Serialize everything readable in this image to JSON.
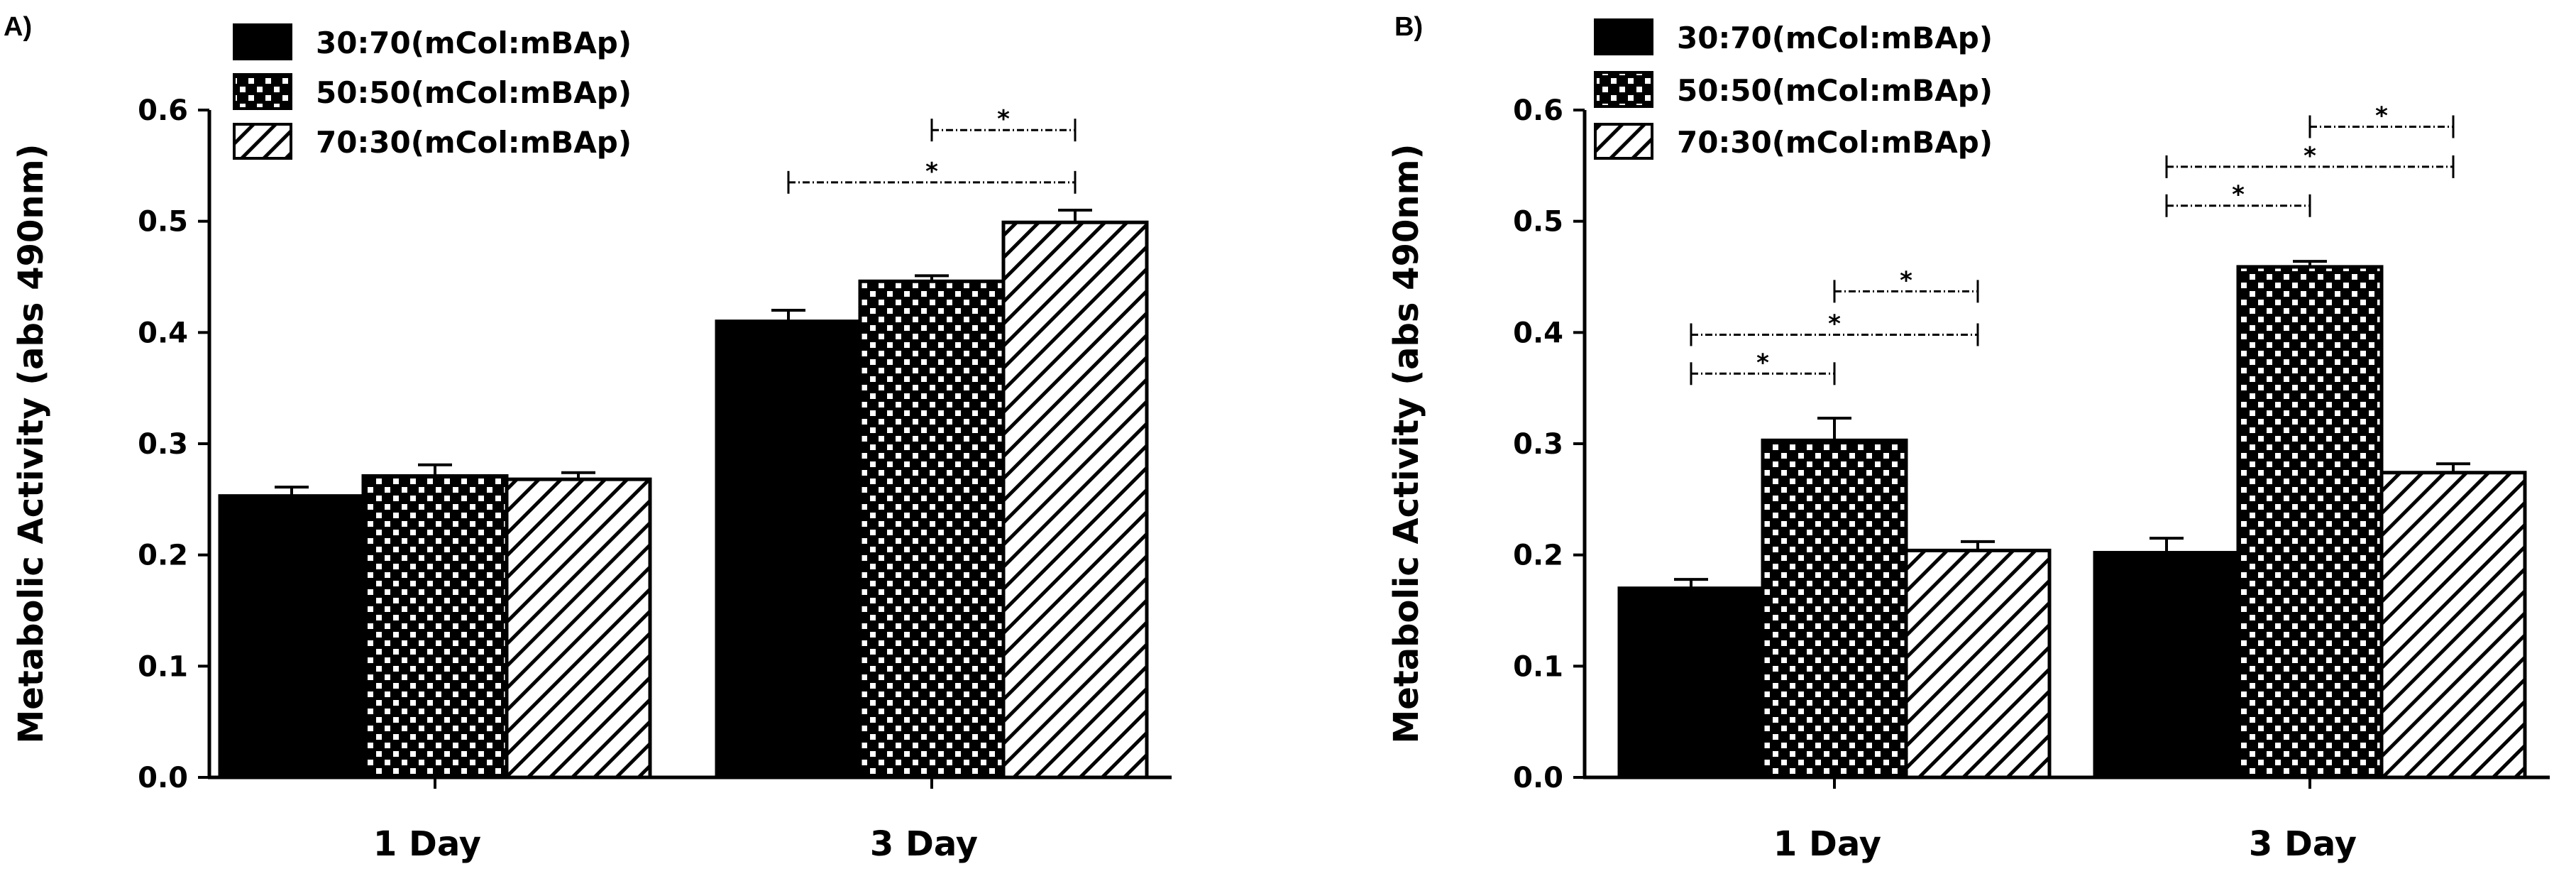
{
  "chart_data": [
    {
      "panel": "A)",
      "type": "bar",
      "ylabel": "Metabolic Activity (abs 490nm)",
      "xlabel": "",
      "ylim": [
        0,
        0.6
      ],
      "yticks": [
        "0.0",
        "0.1",
        "0.2",
        "0.3",
        "0.4",
        "0.5",
        "0.6"
      ],
      "categories": [
        "1 Day",
        "3 Day"
      ],
      "series": [
        {
          "name": "30:70(mCol:mBAp)",
          "pattern": "solid",
          "values": [
            0.253,
            0.41
          ],
          "errors": [
            0.008,
            0.01
          ]
        },
        {
          "name": "50:50(mCol:mBAp)",
          "pattern": "checker",
          "values": [
            0.271,
            0.446
          ],
          "errors": [
            0.01,
            0.005
          ]
        },
        {
          "name": "70:30(mCol:mBAp)",
          "pattern": "hatch",
          "values": [
            0.268,
            0.499
          ],
          "errors": [
            0.006,
            0.011
          ]
        }
      ],
      "significance": [
        {
          "category": 1,
          "from": 1,
          "to": 2,
          "y": 0.582,
          "label": "*"
        },
        {
          "category": 1,
          "from": 0,
          "to": 2,
          "y": 0.535,
          "label": "*"
        }
      ]
    },
    {
      "panel": "B)",
      "type": "bar",
      "ylabel": "Metabolic Activity (abs 490nm)",
      "xlabel": "",
      "ylim": [
        0,
        0.6
      ],
      "yticks": [
        "0.0",
        "0.1",
        "0.2",
        "0.3",
        "0.4",
        "0.5",
        "0.6"
      ],
      "categories": [
        "1 Day",
        "3 Day"
      ],
      "series": [
        {
          "name": "30:70(mCol:mBAp)",
          "pattern": "solid",
          "values": [
            0.17,
            0.202
          ],
          "errors": [
            0.008,
            0.013
          ]
        },
        {
          "name": "50:50(mCol:mBAp)",
          "pattern": "checker",
          "values": [
            0.303,
            0.459
          ],
          "errors": [
            0.02,
            0.005
          ]
        },
        {
          "name": "70:30(mCol:mBAp)",
          "pattern": "hatch",
          "values": [
            0.204,
            0.274
          ],
          "errors": [
            0.008,
            0.008
          ]
        }
      ],
      "significance": [
        {
          "category": 0,
          "from": 1,
          "to": 2,
          "y": 0.437,
          "label": "*"
        },
        {
          "category": 0,
          "from": 0,
          "to": 2,
          "y": 0.398,
          "label": "*"
        },
        {
          "category": 0,
          "from": 0,
          "to": 1,
          "y": 0.363,
          "label": "*"
        },
        {
          "category": 1,
          "from": 1,
          "to": 2,
          "y": 0.585,
          "label": "*"
        },
        {
          "category": 1,
          "from": 0,
          "to": 2,
          "y": 0.549,
          "label": "*"
        },
        {
          "category": 1,
          "from": 0,
          "to": 1,
          "y": 0.514,
          "label": "*"
        }
      ]
    }
  ]
}
